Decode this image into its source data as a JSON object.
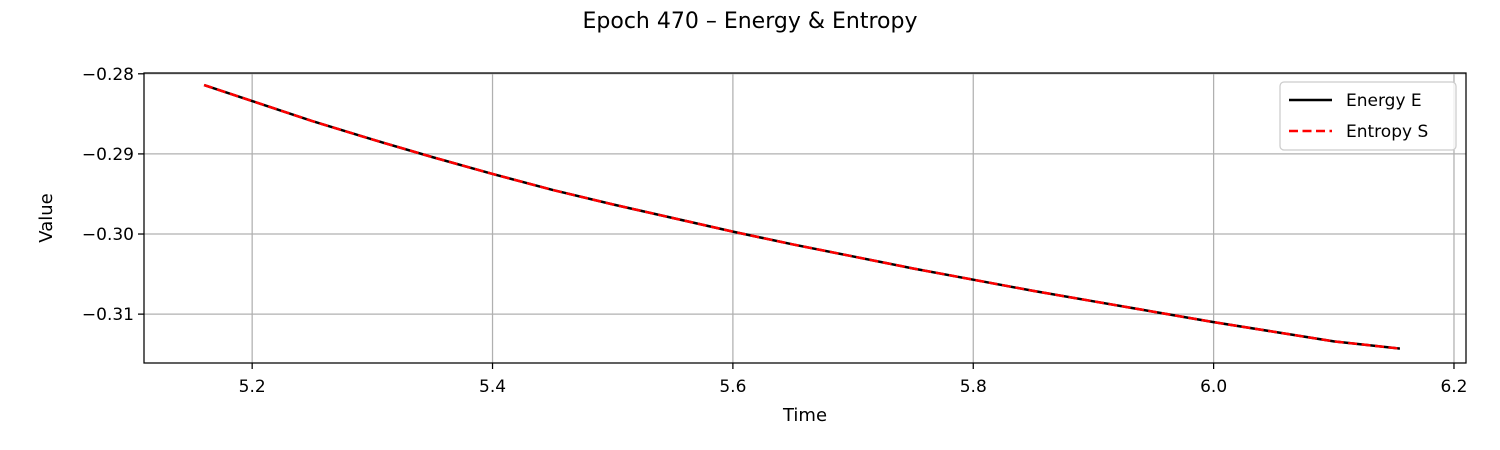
{
  "chart_data": {
    "type": "line",
    "title": "Epoch 470 – Energy & Entropy",
    "xlabel": "Time",
    "ylabel": "Value",
    "xlim": [
      5.11,
      6.21
    ],
    "ylim": [
      -0.3161,
      -0.2799
    ],
    "xticks": [
      5.2,
      5.4,
      5.6,
      5.8,
      6.0,
      6.2
    ],
    "xtick_labels": [
      "5.2",
      "5.4",
      "5.6",
      "5.8",
      "6.0",
      "6.2"
    ],
    "yticks": [
      -0.28,
      -0.29,
      -0.3,
      -0.31
    ],
    "ytick_labels": [
      "−0.28",
      "−0.29",
      "−0.30",
      "−0.31"
    ],
    "grid": true,
    "legend_position": "top-right",
    "x": [
      5.16,
      5.2,
      5.25,
      5.3,
      5.35,
      5.4,
      5.45,
      5.5,
      5.55,
      5.6,
      5.65,
      5.7,
      5.75,
      5.8,
      5.85,
      5.9,
      5.95,
      6.0,
      6.05,
      6.1,
      6.155
    ],
    "series": [
      {
        "name": "Energy E",
        "color": "#000000",
        "style": "solid",
        "values": [
          -0.2814,
          -0.2834,
          -0.2859,
          -0.2882,
          -0.2904,
          -0.2925,
          -0.2945,
          -0.2963,
          -0.298,
          -0.2997,
          -0.3013,
          -0.3028,
          -0.3043,
          -0.3057,
          -0.3071,
          -0.3084,
          -0.3097,
          -0.311,
          -0.3122,
          -0.3134,
          -0.3143
        ]
      },
      {
        "name": "Entropy S",
        "color": "#ff0000",
        "style": "dashed",
        "values": [
          -0.2814,
          -0.2834,
          -0.2859,
          -0.2882,
          -0.2904,
          -0.2925,
          -0.2945,
          -0.2963,
          -0.298,
          -0.2997,
          -0.3013,
          -0.3028,
          -0.3043,
          -0.3057,
          -0.3071,
          -0.3084,
          -0.3097,
          -0.311,
          -0.3122,
          -0.3134,
          -0.3143
        ]
      }
    ]
  }
}
